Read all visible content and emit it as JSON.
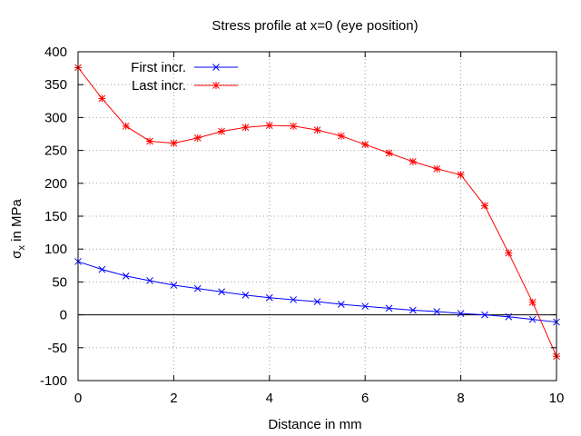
{
  "chart_data": {
    "type": "line",
    "title": "Stress profile at x=0 (eye position)",
    "xlabel": "Distance in mm",
    "ylabel": {
      "base": "σ",
      "sub": "x",
      "rest": " in MPa"
    },
    "xlim": [
      0,
      10
    ],
    "ylim": [
      -100,
      400
    ],
    "xticks": [
      0,
      2,
      4,
      6,
      8,
      10
    ],
    "yticks": [
      -100,
      -50,
      0,
      50,
      100,
      150,
      200,
      250,
      300,
      350,
      400
    ],
    "grid": true,
    "zero_line": true,
    "legend_position": "top-left",
    "x": [
      0,
      0.5,
      1,
      1.5,
      2,
      2.5,
      3,
      3.5,
      4,
      4.5,
      5,
      5.5,
      6,
      6.5,
      7,
      7.5,
      8,
      8.5,
      9,
      9.5,
      10
    ],
    "series": [
      {
        "name": "First incr.",
        "color": "#0000ff",
        "marker": "x",
        "values": [
          81,
          69,
          59,
          52,
          45,
          40,
          35,
          30,
          26,
          23,
          20,
          16,
          13,
          10,
          7,
          5,
          2,
          0,
          -3,
          -7,
          -11
        ]
      },
      {
        "name": "Last incr.",
        "color": "#ff0000",
        "marker": "star",
        "values": [
          376,
          329,
          287,
          264,
          261,
          269,
          279,
          285,
          288,
          287,
          281,
          272,
          259,
          246,
          233,
          222,
          213,
          166,
          94,
          19,
          -63
        ]
      }
    ]
  }
}
